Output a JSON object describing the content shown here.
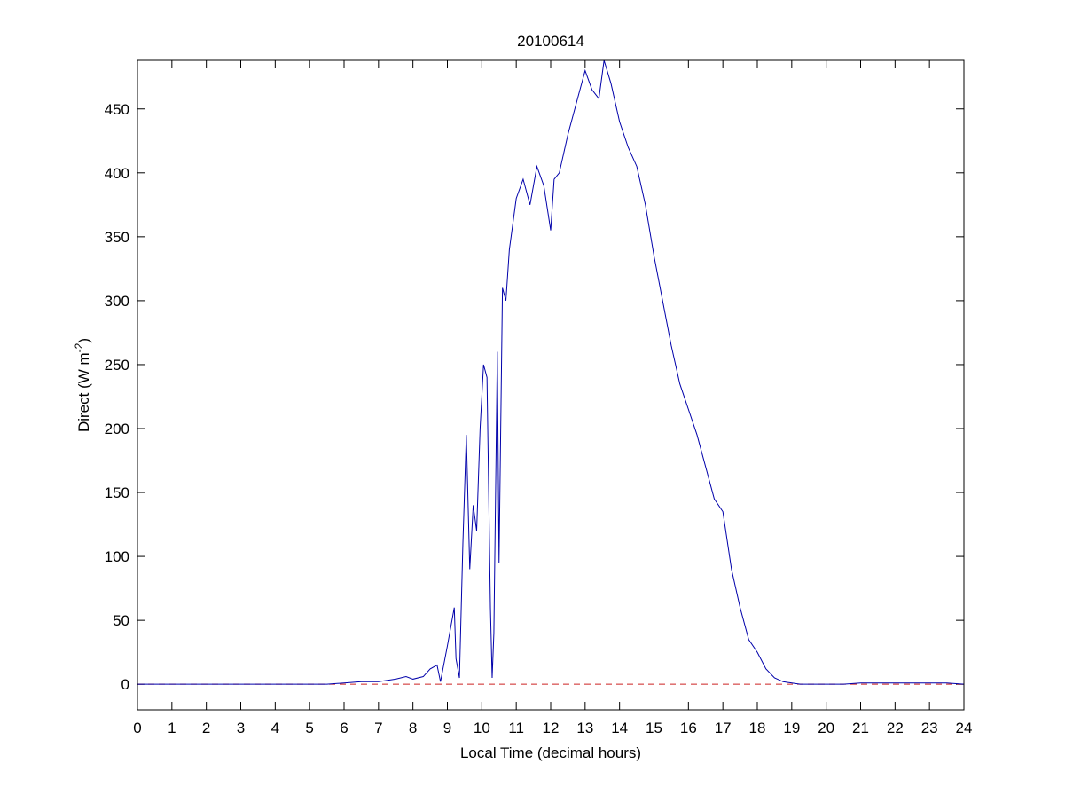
{
  "chart_data": {
    "type": "line",
    "title": "20100614",
    "xlabel": "Local Time (decimal hours)",
    "ylabel_parts": [
      "Direct (W m",
      "-2",
      ")"
    ],
    "x": [
      0,
      0.5,
      1,
      1.5,
      2,
      2.5,
      3,
      3.5,
      4,
      4.5,
      5,
      5.5,
      6,
      6.5,
      7,
      7.5,
      7.8,
      8,
      8.3,
      8.5,
      8.7,
      8.8,
      9,
      9.1,
      9.2,
      9.25,
      9.35,
      9.45,
      9.55,
      9.65,
      9.75,
      9.85,
      9.95,
      10.05,
      10.15,
      10.25,
      10.3,
      10.35,
      10.45,
      10.5,
      10.6,
      10.7,
      10.8,
      11,
      11.2,
      11.4,
      11.6,
      11.8,
      12,
      12.1,
      12.25,
      12.5,
      12.75,
      13,
      13.2,
      13.4,
      13.55,
      13.75,
      14,
      14.25,
      14.5,
      14.75,
      15,
      15.25,
      15.5,
      15.75,
      16,
      16.25,
      16.5,
      16.75,
      17,
      17.25,
      17.5,
      17.75,
      18,
      18.25,
      18.5,
      18.75,
      19,
      19.25,
      19.5,
      20,
      20.5,
      21,
      21.5,
      22,
      22.5,
      23,
      23.5,
      24
    ],
    "series": [
      {
        "color": "#0000aa",
        "values": [
          0,
          0,
          0,
          0,
          0,
          0,
          0,
          0,
          0,
          0,
          0,
          0,
          1,
          2,
          2,
          4,
          6,
          4,
          6,
          12,
          15,
          2,
          30,
          45,
          60,
          20,
          5,
          110,
          195,
          90,
          140,
          120,
          200,
          250,
          240,
          60,
          5,
          40,
          260,
          95,
          310,
          300,
          340,
          380,
          395,
          375,
          405,
          390,
          355,
          395,
          400,
          430,
          455,
          480,
          465,
          458,
          488,
          470,
          440,
          420,
          405,
          375,
          335,
          300,
          265,
          235,
          215,
          195,
          170,
          145,
          135,
          90,
          60,
          35,
          25,
          12,
          5,
          2,
          1,
          0,
          0,
          0,
          0,
          1,
          1,
          1,
          1,
          1,
          1,
          0
        ]
      }
    ],
    "reference_line": {
      "value": 0,
      "color": "#cc2222",
      "style": "dashed"
    },
    "xlim": [
      0,
      24
    ],
    "xticks": [
      0,
      1,
      2,
      3,
      4,
      5,
      6,
      7,
      8,
      9,
      10,
      11,
      12,
      13,
      14,
      15,
      16,
      17,
      18,
      19,
      20,
      21,
      22,
      23,
      24
    ],
    "ylim": [
      -20,
      488
    ],
    "yticks": [
      0,
      50,
      100,
      150,
      200,
      250,
      300,
      350,
      400,
      450
    ]
  }
}
